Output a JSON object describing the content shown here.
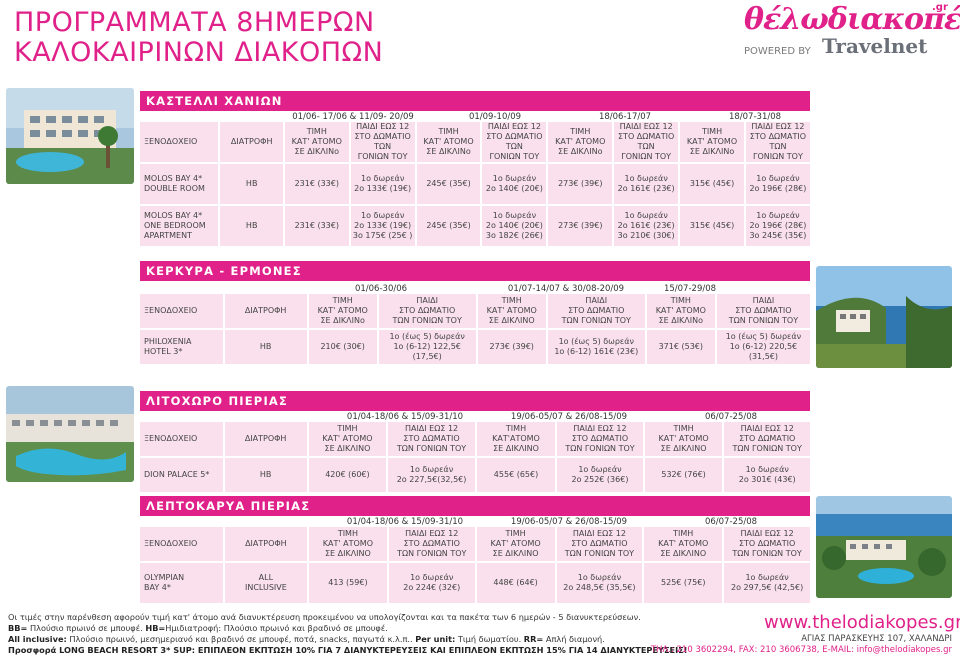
{
  "title": {
    "line1": "ΠΡΟΓΡΑΜΜΑΤΑ 8ΗΜΕΡΩΝ",
    "line2": "ΚΑΛΟΚΑΙΡΙΝΩΝ ΔΙΑΚΟΠΩΝ"
  },
  "logo": {
    "brand": "θέλωδιακοπές",
    "suffix": ".gr",
    "powered": "POWERED BY",
    "partner": "Travelnet"
  },
  "colors": {
    "accent": "#e0218a",
    "cell": "#f9e0ec"
  },
  "sections": [
    {
      "name": "ΚΑΣΤΕΛΛΙ ΧΑΝΙΩΝ",
      "periods": [
        "01/06- 17/06  & 11/09- 20/09",
        "01/09-10/09",
        "18/06-17/07",
        "18/07-31/08"
      ],
      "headers": [
        "ΞΕΝΟΔΟΧΕΙΟ",
        "ΔΙΑΤΡΟΦΗ",
        "ΤΙΜΗ\nΚΑΤ' ΑΤΟΜΟ\nΣΕ ΔΙΚΛΙΝο",
        "ΠΑΙΔΙ ΕΩΣ 12\nΣΤΟ ΔΩΜΑΤΙΟ ΤΩΝ\nΓΟΝΙΩΝ ΤΟΥ",
        "ΤΙΜΗ\nΚΑΤ' ΑΤΟΜΟ\nΣΕ ΔΙΚΛΙΝο",
        "ΠΑΙΔΙ ΕΩΣ 12\nΣΤΟ ΔΩΜΑΤΙΟ ΤΩΝ\nΓΟΝΙΩΝ ΤΟΥ",
        "ΤΙΜΗ\nΚΑΤ' ΑΤΟΜΟ\nΣΕ ΔΙΚΛΙΝο",
        "ΠΑΙΔΙ ΕΩΣ 12\nΣΤΟ ΔΩΜΑΤΙΟ ΤΩΝ\nΓΟΝΙΩΝ ΤΟΥ",
        "ΤΙΜΗ\nΚΑΤ' ΑΤΟΜΟ\nΣΕ ΔΙΚΛΙΝο",
        "ΠΑΙΔΙ ΕΩΣ 12\nΣΤΟ ΔΩΜΑΤΙΟ ΤΩΝ\nΓΟΝΙΩΝ ΤΟΥ"
      ],
      "rows": [
        [
          "MOLOS BAY 4*\nDOUBLE ROOM",
          "HB",
          "231€ (33€)",
          "1ο δωρεάν\n2ο 133€ (19€)",
          "245€ (35€)",
          "1ο δωρεάν\n2ο 140€ (20€)",
          "273€ (39€)",
          "1ο δωρεάν\n2ο 161€ (23€)",
          "315€ (45€)",
          "1ο δωρεάν\n2ο 196€ (28€)"
        ],
        [
          "MOLOS BAY 4*\nONE BEDROOM\nAPARTMENT",
          "HB",
          "231€ (33€)",
          "1ο δωρεάν\n2ο 133€ (19€)\n3ο 175€ (25€ )",
          "245€ (35€)",
          "1ο δωρεάν\n2ο 140€ (20€)\n3ο 182€ (26€)",
          "273€ (39€)",
          "1ο δωρεάν\n2ο 161€ (23€)\n3ο 210€ (30€)",
          "315€ (45€)",
          "1ο δωρεάν\n2ο 196€ (28€)\n3ο 245€ (35€)"
        ]
      ]
    },
    {
      "name": "ΚΕΡΚΥΡΑ - ΕΡΜΟΝΕΣ",
      "periods": [
        "01/06-30/06",
        "01/07-14/07 & 30/08-20/09",
        "15/07-29/08"
      ],
      "headers": [
        "ΞΕΝΟΔΟΧΕΙΟ",
        "ΔΙΑΤΡΟΦΗ",
        "ΤΙΜΗ\nΚΑΤ' ΑΤΟΜΟ\nΣΕ ΔΙΚΛΙΝο",
        "ΠΑΙΔΙ\nΣΤΟ ΔΩΜΑΤΙΟ\nΤΩΝ ΓΟΝΙΩΝ ΤΟΥ",
        "ΤΙΜΗ\nΚΑΤ' ΑΤΟΜΟ\nΣΕ ΔΙΚΛΙΝΟ",
        "ΠΑΙΔΙ\nΣΤΟ ΔΩΜΑΤΙΟ\nΤΩΝ ΓΟΝΙΩΝ ΤΟΥ",
        "ΤΙΜΗ\nΚΑΤ' ΑΤΟΜΟ\nΣΕ ΔΙΚΛΙΝο",
        "ΠΑΙΔΙ\nΣΤΟ ΔΩΜΑΤΙΟ\nΤΩΝ ΓΟΝΙΩΝ ΤΟΥ"
      ],
      "rows": [
        [
          "PHILOXENIA\nHOTEL 3*",
          "HB",
          "210€ (30€)",
          "1ο (έως 5) δωρεάν\n1ο (6-12) 122,5€ (17,5€)",
          "273€ (39€)",
          "1ο (έως 5) δωρεάν\n1ο (6-12) 161€ (23€)",
          "371€ (53€)",
          "1ο (έως 5) δωρεάν\n1ο (6-12) 220,5€ (31,5€)"
        ]
      ]
    },
    {
      "name": "ΛΙΤΟΧΩΡΟ ΠΙΕΡΙΑΣ",
      "periods": [
        "01/04-18/06 & 15/09-31/10",
        "19/06-05/07 & 26/08-15/09",
        "06/07-25/08"
      ],
      "headers": [
        "ΞΕΝΟΔΟΧΕΙΟ",
        "ΔΙΑΤΡΟΦΗ",
        "ΤΙΜΗ\nΚΑΤ' ΑΤΟΜΟ\nΣΕ ΔΙΚΛΙΝΟ",
        "ΠΑΙΔΙ ΕΩΣ 12\nΣΤΟ ΔΩΜΑΤΙΟ\nΤΩΝ ΓΟΝΙΩΝ ΤΟΥ",
        "ΤΙΜΗ\nΚΑΤ'ΑΤΟΜΟ\nΣΕ ΔΙΚΛΙΝΟ",
        "ΠΑΙΔΙ ΕΩΣ 12\nΣΤΟ ΔΩΜΑΤΙΟ\nΤΩΝ ΓΟΝΙΩΝ ΤΟΥ",
        "ΤΙΜΗ\nΚΑΤ' ΑΤΟΜΟ\nΣΕ ΔΙΚΛΙΝΟ",
        "ΠΑΙΔΙ ΕΩΣ 12\nΣΤΟ ΔΩΜΑΤΙΟ\nΤΩΝ ΓΟΝΙΩΝ ΤΟΥ"
      ],
      "rows": [
        [
          "DION PALACE 5*",
          "HB",
          "420€ (60€)",
          "1ο δωρεάν\n2ο 227,5€(32,5€)",
          "455€ (65€)",
          "1ο δωρεάν\n2ο 252€ (36€)",
          "532€ (76€)",
          "1ο δωρεάν\n2ο 301€ (43€)"
        ]
      ]
    },
    {
      "name": "ΛΕΠΤΟΚΑΡΥΑ ΠΙΕΡΙΑΣ",
      "periods": [
        "01/04-18/06 & 15/09-31/10",
        "19/06-05/07 & 26/08-15/09",
        "06/07-25/08"
      ],
      "headers": [
        "ΞΕΝΟΔΟΧΕΙΟ",
        "ΔΙΑΤΡΟΦΗ",
        "ΤΙΜΗ\nΚΑΤ' ΑΤΟΜΟ\nΣΕ ΔΙΚΛΙΝΟ",
        "ΠΑΙΔΙ ΕΩΣ 12\nΣΤΟ ΔΩΜΑΤΙΟ\nΤΩΝ ΓΟΝΙΩΝ ΤΟΥ",
        "ΤΙΜΗ\nΚΑΤ' ΑΤΟΜΟ\nΣΕ ΔΙΚΛΙΝΟ",
        "ΠΑΙΔΙ ΕΩΣ 12\nΣΤΟ ΔΩΜΑΤΙΟ\nΤΩΝ ΓΟΝΙΩΝ ΤΟΥ",
        "ΤΙΜΗ\nΚΑΤ' ΑΤΟΜΟ\nΣΕ ΔΙΚΛΙΝΟ",
        "ΠΑΙΔΙ ΕΩΣ 12\nΣΤΟ ΔΩΜΑΤΙΟ\nΤΩΝ ΓΟΝΙΩΝ ΤΟΥ"
      ],
      "rows": [
        [
          "OLYMPIAN\nBAY 4*",
          "ALL\nINCLUSIVE",
          "413 (59€)",
          "1ο δωρεάν\n2ο 224€ (32€)",
          "448€ (64€)",
          "1ο δωρεάν\n2ο 248,5€ (35,5€)",
          "525€ (75€)",
          "1ο δωρεάν\n2ο 297,5€ (42,5€)"
        ]
      ]
    }
  ],
  "footer": {
    "note1": "Οι τιμές στην παρένθεση αφορούν τιμή κατ' άτομο ανά διανυκτέρευση προκειμένου να υπολογίζονται και τα πακέτα των 6 ημερών - 5 διανυκτερεύσεων.",
    "note2_b": "BB=",
    "note2_a": " Πλούσιο πρωινό σε μπουφέ. ",
    "note2_b2": "HB=",
    "note2_a2": "Ημιδιατροφή: Πλούσιο πρωινό και βραδινό σε μπουφέ.",
    "note3_b": "All inclusive:",
    "note3_a": " Πλούσιο πρωινό, μεσημεριανό και βραδινό σε μπουφέ, ποτά, snacks, παγωτά κ.λ.π.. ",
    "note3_b2": "Per unit:",
    "note3_a2": " Τιμή δωματίου. ",
    "note3_b3": "RR=",
    "note3_a3": " Απλή διαμονή.",
    "promo": "Προσφορά LONG BEACH RESORT 3* SUP: ΕΠΙΠΛΕΟΝ ΕΚΠΤΩΣΗ 10% ΓΙΑ 7 ΔΙΑΝΥΚΤΕΡΕΥΣΕΙΣ ΚΑΙ ΕΠΙΠΛΕΟΝ ΕΚΠΤΩΣΗ 15% ΓΙΑ 14 ΔΙΑΝΥΚΤΕΡΕΥΣΕΙΣ!",
    "website": "www.thelodiakopes.gr",
    "address": "ΑΓΙΑΣ ΠΑΡΑΣΚΕΥΗΣ 107, ΧΑΛΑΝΔΡΙ",
    "contact": "ΤΗΛ.: 210 3602294, FAX: 210 3606738, E-MAIL: info@thelodiakopes.gr"
  }
}
